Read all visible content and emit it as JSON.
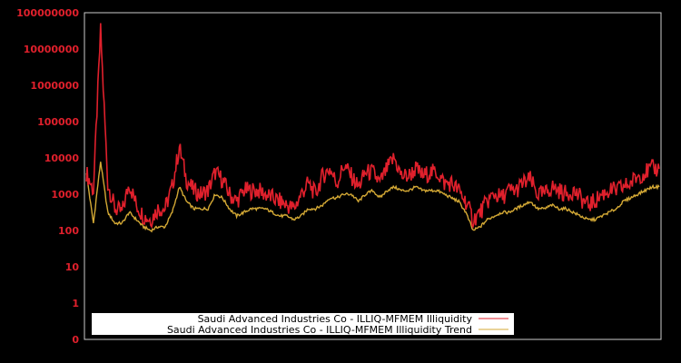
{
  "chart_data": {
    "type": "line",
    "title": "",
    "xlabel": "",
    "ylabel": "",
    "yscale": "log",
    "y_tick_labels": [
      "0",
      "1",
      "10",
      "100",
      "1000",
      "10000",
      "100000",
      "1000000",
      "10000000",
      "100000000"
    ],
    "ylim": [
      0,
      100000000
    ],
    "grid": false,
    "legend_position": "lower center",
    "colors": {
      "background": "#000000",
      "frame": "#cccccc",
      "tick_text": "#e0202c",
      "series_illiquidity": "#e0202c",
      "series_trend": "#d4a935",
      "legend_bg": "#ffffff"
    },
    "x_index": [
      0,
      1,
      2,
      3,
      4,
      5,
      6,
      7,
      8,
      9,
      10,
      11,
      12,
      13,
      14,
      15,
      16,
      17,
      18,
      19,
      20,
      21,
      22,
      23,
      24,
      25,
      26,
      27,
      28,
      29,
      30,
      31,
      32,
      33,
      34,
      35,
      36,
      37,
      38,
      39,
      40,
      41,
      42,
      43,
      44,
      45,
      46,
      47,
      48,
      49,
      50,
      51,
      52,
      53,
      54,
      55,
      56,
      57,
      58,
      59,
      60,
      61,
      62,
      63,
      64,
      65,
      66,
      67,
      68,
      69,
      70,
      71,
      72,
      73,
      74,
      75,
      76,
      77,
      78,
      79,
      80
    ],
    "series": [
      {
        "name": "Saudi Advanced Industries Co - ILLIQ-MFMEM Illiquidity",
        "log10_values": [
          3.6,
          3.1,
          7.5,
          3.3,
          2.6,
          2.5,
          3.3,
          2.7,
          2.4,
          2.3,
          2.6,
          2.6,
          3.2,
          4.3,
          3.4,
          3.1,
          3.0,
          3.1,
          3.6,
          3.4,
          3.0,
          2.8,
          3.1,
          3.1,
          3.1,
          3.0,
          2.9,
          2.8,
          2.7,
          2.6,
          3.0,
          3.3,
          3.0,
          3.5,
          3.7,
          3.3,
          3.8,
          3.5,
          3.2,
          3.6,
          3.6,
          3.3,
          3.7,
          4.0,
          3.5,
          3.5,
          3.7,
          3.5,
          3.6,
          3.6,
          3.3,
          3.3,
          3.1,
          2.8,
          2.3,
          2.5,
          2.8,
          3.0,
          2.9,
          3.1,
          3.1,
          3.3,
          3.4,
          3.0,
          3.0,
          3.2,
          3.1,
          3.0,
          3.1,
          2.9,
          2.7,
          2.8,
          3.0,
          3.1,
          3.1,
          3.2,
          3.3,
          3.5,
          3.6,
          3.7,
          3.7
        ]
      },
      {
        "name": "Saudi Advanced Industries Co - ILLIQ-MFMEM Illiquidity Trend",
        "log10_values": [
          3.6,
          2.2,
          3.9,
          2.5,
          2.2,
          2.2,
          2.5,
          2.3,
          2.1,
          2.0,
          2.1,
          2.1,
          2.5,
          3.2,
          2.8,
          2.6,
          2.6,
          2.6,
          3.0,
          2.9,
          2.6,
          2.4,
          2.5,
          2.6,
          2.6,
          2.6,
          2.5,
          2.4,
          2.4,
          2.3,
          2.4,
          2.6,
          2.6,
          2.7,
          2.9,
          2.9,
          3.0,
          3.0,
          2.8,
          3.0,
          3.1,
          2.9,
          3.1,
          3.2,
          3.1,
          3.1,
          3.2,
          3.1,
          3.1,
          3.1,
          3.0,
          2.9,
          2.8,
          2.5,
          2.0,
          2.1,
          2.3,
          2.4,
          2.5,
          2.5,
          2.6,
          2.7,
          2.8,
          2.6,
          2.6,
          2.7,
          2.6,
          2.6,
          2.5,
          2.4,
          2.3,
          2.3,
          2.4,
          2.5,
          2.6,
          2.8,
          2.9,
          3.0,
          3.1,
          3.2,
          3.2
        ]
      }
    ]
  },
  "legend": {
    "items": [
      {
        "label": "Saudi Advanced Industries Co - ILLIQ-MFMEM Illiquidity"
      },
      {
        "label": "Saudi Advanced Industries Co - ILLIQ-MFMEM Illiquidity Trend"
      }
    ]
  }
}
